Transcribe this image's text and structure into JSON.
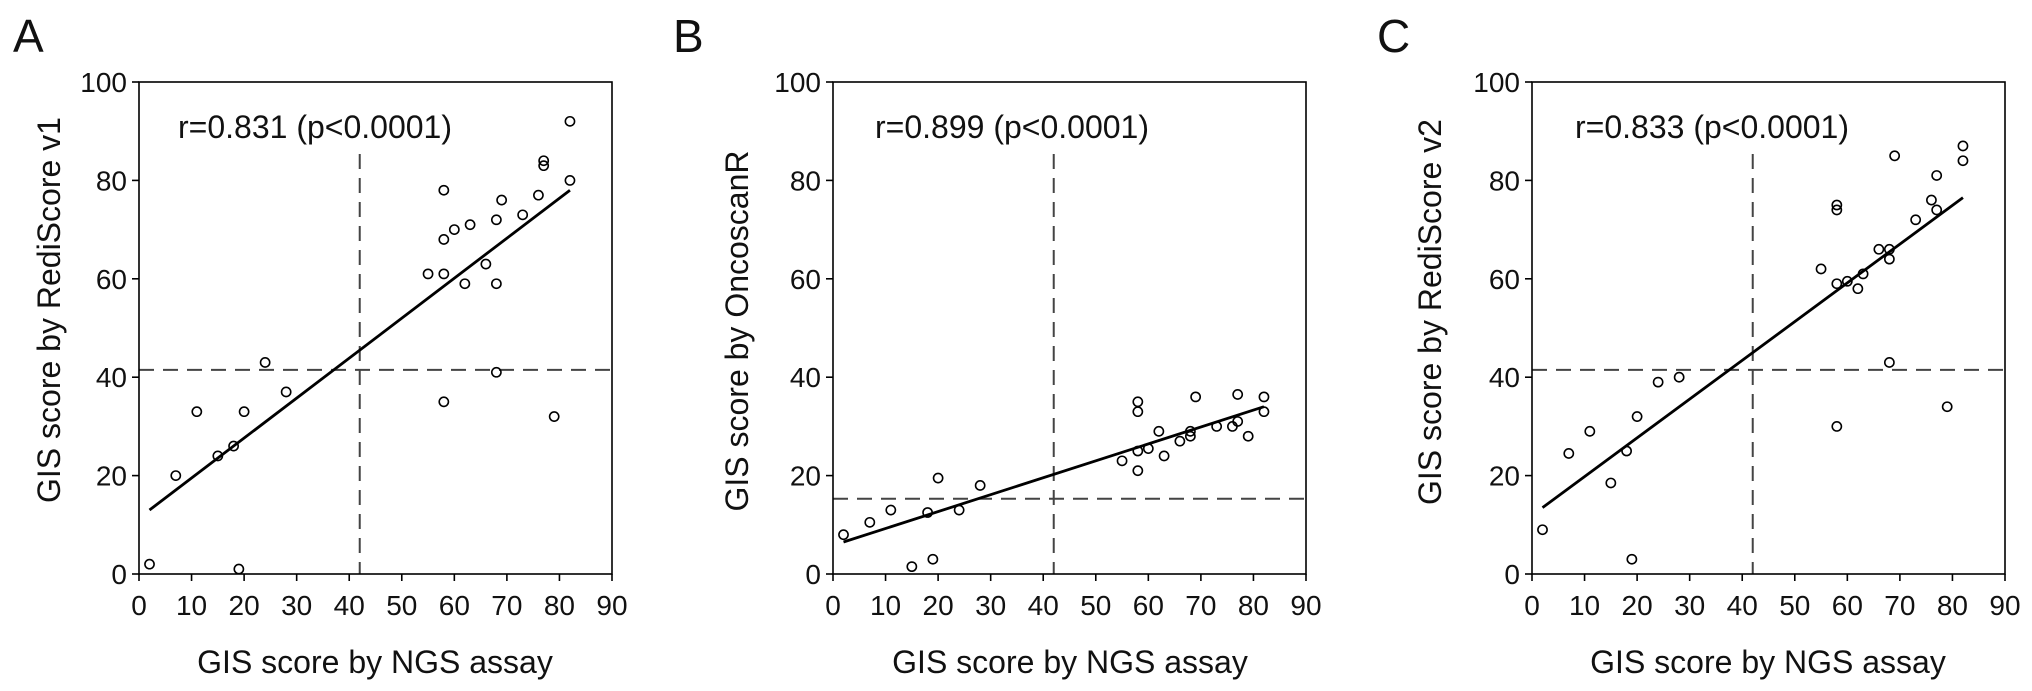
{
  "chart_data": [
    {
      "type": "scatter",
      "panel_label": "A",
      "annotation": "r=0.831 (p<0.0001)",
      "xlabel": "GIS score by NGS assay",
      "ylabel": "GIS score by RediScore v1",
      "xlim": [
        0,
        90
      ],
      "ylim": [
        0,
        100
      ],
      "xticks": [
        0,
        10,
        20,
        30,
        40,
        50,
        60,
        70,
        80,
        90
      ],
      "yticks": [
        0,
        20,
        40,
        60,
        80,
        100
      ],
      "grid": false,
      "x": [
        2,
        7,
        11,
        15,
        18,
        19,
        20,
        24,
        28,
        55,
        58,
        58,
        58,
        58,
        60,
        62,
        63,
        66,
        68,
        68,
        68,
        69,
        73,
        76,
        77,
        77,
        79,
        82,
        82
      ],
      "y": [
        2,
        20,
        33,
        24,
        26,
        1,
        33,
        43,
        37,
        61,
        78,
        68,
        61,
        35,
        70,
        59,
        71,
        63,
        72,
        59,
        41,
        76,
        73,
        77,
        84,
        83,
        32,
        92,
        80
      ],
      "fit_line": {
        "x": [
          2,
          82
        ],
        "y": [
          13,
          78
        ]
      },
      "reference_lines": {
        "x": 42,
        "y": 41.5
      }
    },
    {
      "type": "scatter",
      "panel_label": "B",
      "annotation": "r=0.899 (p<0.0001)",
      "xlabel": "GIS score by NGS assay",
      "ylabel": "GIS score by OncoscanR",
      "xlim": [
        0,
        90
      ],
      "ylim": [
        0,
        100
      ],
      "xticks": [
        0,
        10,
        20,
        30,
        40,
        50,
        60,
        70,
        80,
        90
      ],
      "yticks": [
        0,
        20,
        40,
        60,
        80,
        100
      ],
      "grid": false,
      "x": [
        2,
        7,
        11,
        15,
        18,
        19,
        20,
        24,
        28,
        55,
        58,
        58,
        58,
        58,
        60,
        62,
        63,
        66,
        68,
        68,
        69,
        73,
        76,
        77,
        77,
        79,
        82,
        82
      ],
      "y": [
        8,
        10.5,
        13,
        1.5,
        12.5,
        3,
        19.5,
        13,
        18,
        23,
        35,
        33,
        25,
        21,
        25.5,
        29,
        24,
        27,
        29,
        28,
        36,
        30,
        30,
        36.5,
        31,
        28,
        36,
        33
      ],
      "fit_line": {
        "x": [
          2,
          82
        ],
        "y": [
          6.5,
          34
        ]
      },
      "reference_lines": {
        "x": 42,
        "y": 15.3
      }
    },
    {
      "type": "scatter",
      "panel_label": "C",
      "annotation": "r=0.833 (p<0.0001)",
      "xlabel": "GIS score by NGS assay",
      "ylabel": "GIS score by RediScore v2",
      "xlim": [
        0,
        90
      ],
      "ylim": [
        0,
        100
      ],
      "xticks": [
        0,
        10,
        20,
        30,
        40,
        50,
        60,
        70,
        80,
        90
      ],
      "yticks": [
        0,
        20,
        40,
        60,
        80,
        100
      ],
      "grid": false,
      "x": [
        2,
        7,
        11,
        15,
        18,
        19,
        20,
        24,
        28,
        55,
        58,
        58,
        58,
        58,
        60,
        62,
        63,
        66,
        68,
        68,
        68,
        69,
        73,
        76,
        77,
        77,
        79,
        82,
        82
      ],
      "y": [
        9,
        24.5,
        29,
        18.5,
        25,
        3,
        32,
        39,
        40,
        62,
        75,
        74,
        59,
        30,
        59.5,
        58,
        61,
        66,
        66,
        64,
        43,
        85,
        72,
        76,
        81,
        74,
        34,
        87,
        84
      ],
      "fit_line": {
        "x": [
          2,
          82
        ],
        "y": [
          13.5,
          76.5
        ]
      },
      "reference_lines": {
        "x": 42,
        "y": 41.5
      }
    }
  ],
  "colors": {
    "markers": "#000000",
    "fit_line": "#000000",
    "reference_lines": "#444444",
    "text": "#111111"
  }
}
